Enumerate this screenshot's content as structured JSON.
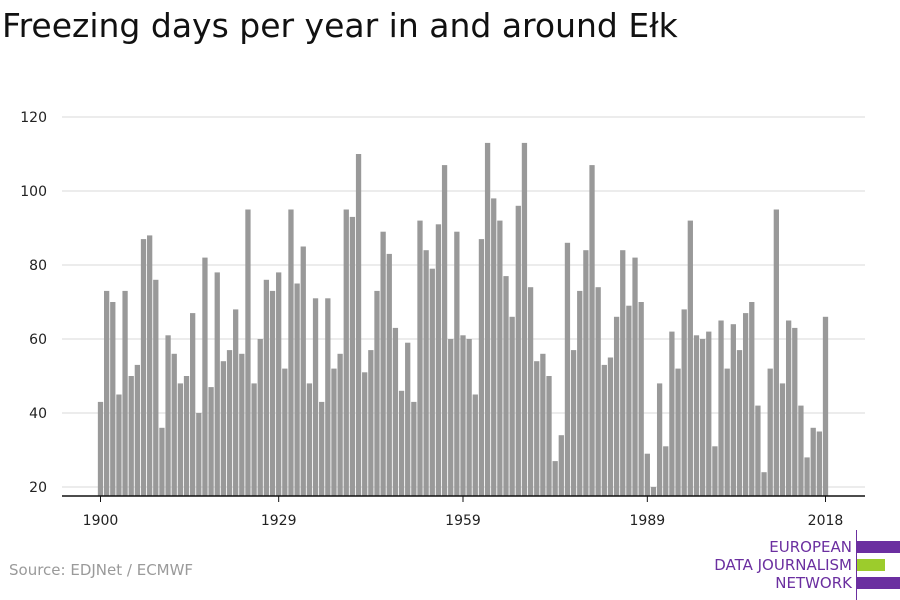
{
  "title": "Freezing days per year in and around Ełk",
  "source": "Source: EDJNet / ECMWF",
  "logo": {
    "lines": [
      "EUROPEAN",
      "DATA JOURNALISM",
      "NETWORK"
    ],
    "colors": {
      "purple": "#6b2fa0",
      "green": "#9ccc2c"
    }
  },
  "chart_data": {
    "type": "bar",
    "title": "Freezing days per year in and around Ełk",
    "xlabel": "",
    "ylabel": "",
    "x_start": 1900,
    "x_end": 2018,
    "x_ticks": [
      1900,
      1929,
      1959,
      1989,
      2018
    ],
    "y_ticks": [
      20,
      40,
      60,
      80,
      100,
      120
    ],
    "ylim": [
      17,
      120
    ],
    "grid": true,
    "bar_color": "#999999",
    "values": [
      43,
      73,
      70,
      45,
      73,
      50,
      53,
      87,
      88,
      76,
      36,
      61,
      56,
      48,
      50,
      67,
      40,
      82,
      47,
      78,
      54,
      57,
      68,
      56,
      95,
      48,
      60,
      76,
      73,
      78,
      52,
      95,
      75,
      85,
      48,
      71,
      43,
      71,
      52,
      56,
      95,
      93,
      110,
      51,
      57,
      73,
      89,
      83,
      63,
      46,
      59,
      43,
      92,
      84,
      79,
      91,
      107,
      60,
      89,
      61,
      60,
      45,
      87,
      113,
      98,
      92,
      77,
      66,
      96,
      113,
      74,
      54,
      56,
      50,
      27,
      34,
      86,
      57,
      73,
      84,
      107,
      74,
      53,
      55,
      66,
      84,
      69,
      82,
      70,
      29,
      20,
      48,
      31,
      62,
      52,
      68,
      92,
      61,
      60,
      62,
      31,
      65,
      52,
      64,
      57,
      67,
      70,
      42,
      24,
      52,
      95,
      48,
      65,
      63,
      42,
      28,
      36,
      35,
      66
    ]
  }
}
